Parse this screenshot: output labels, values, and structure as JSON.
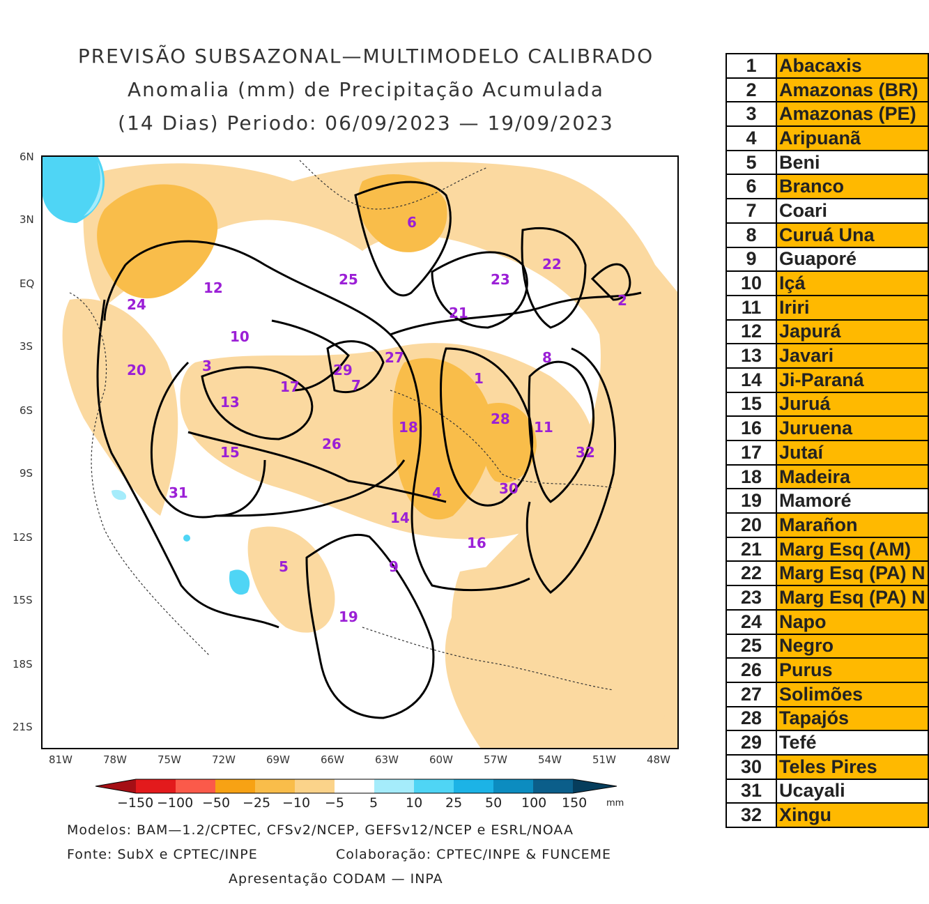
{
  "map": {
    "title_line1": "PREVISÃO SUBSAZONAL—MULTIMODELO CALIBRADO",
    "title_line2": "Anomalia (mm) de Precipitação Acumulada",
    "title_line3": "(14 Dias) Periodo: 06/09/2023 — 19/09/2023",
    "lat_labels": [
      "6N",
      "3N",
      "EQ",
      "3S",
      "6S",
      "9S",
      "12S",
      "15S",
      "18S",
      "21S"
    ],
    "lon_labels": [
      "81W",
      "78W",
      "75W",
      "72W",
      "69W",
      "66W",
      "63W",
      "60W",
      "57W",
      "54W",
      "51W",
      "48W"
    ],
    "basin_markers": [
      "1",
      "2",
      "3",
      "4",
      "5",
      "6",
      "7",
      "8",
      "9",
      "10",
      "11",
      "12",
      "13",
      "14",
      "15",
      "16",
      "17",
      "18",
      "19",
      "20",
      "21",
      "22",
      "23",
      "24",
      "25",
      "26",
      "27",
      "28",
      "29",
      "30",
      "31",
      "32"
    ],
    "legend": {
      "labels": [
        "−150",
        "−100",
        "−50",
        "−25",
        "−10",
        "−5",
        "5",
        "10",
        "25",
        "50",
        "100",
        "150"
      ],
      "unit": "mm",
      "colors": [
        "#a50f15",
        "#e31a1c",
        "#fb5a4a",
        "#f7a214",
        "#f9bd4a",
        "#fbd38a",
        "#fde6bd",
        "#ffffff",
        "#a5ecfb",
        "#4fd5f5",
        "#1cb3e6",
        "#0c8cc0",
        "#0b5e8a",
        "#063d5c"
      ]
    },
    "footer_models": "Modelos: BAM—1.2/CPTEC, CFSv2/NCEP, GEFSv12/NCEP e ESRL/NOAA",
    "footer_source": "Fonte: SubX e CPTEC/INPE",
    "footer_collab": "Colaboração: CPTEC/INPE & FUNCEME",
    "footer_presentation": "Apresentação CODAM — INPA",
    "colors": {
      "orange": "#f9bd4a",
      "light_orange": "#fbd9a0",
      "purple": "#9b1fd6",
      "cyan": "#4fd5f5"
    }
  },
  "basins": [
    {
      "n": "1",
      "name": "Abacaxis",
      "hl": true
    },
    {
      "n": "2",
      "name": "Amazonas (BR)",
      "hl": true
    },
    {
      "n": "3",
      "name": "Amazonas (PE)",
      "hl": true
    },
    {
      "n": "4",
      "name": "Aripuanã",
      "hl": true
    },
    {
      "n": "5",
      "name": "Beni",
      "hl": false
    },
    {
      "n": "6",
      "name": "Branco",
      "hl": true
    },
    {
      "n": "7",
      "name": "Coari",
      "hl": false
    },
    {
      "n": "8",
      "name": "Curuá Una",
      "hl": true
    },
    {
      "n": "9",
      "name": "Guaporé",
      "hl": false
    },
    {
      "n": "10",
      "name": "Içá",
      "hl": true
    },
    {
      "n": "11",
      "name": "Iriri",
      "hl": true
    },
    {
      "n": "12",
      "name": "Japurá",
      "hl": true
    },
    {
      "n": "13",
      "name": "Javari",
      "hl": true
    },
    {
      "n": "14",
      "name": "Ji-Paraná",
      "hl": true
    },
    {
      "n": "15",
      "name": "Juruá",
      "hl": true
    },
    {
      "n": "16",
      "name": "Juruena",
      "hl": true
    },
    {
      "n": "17",
      "name": "Jutaí",
      "hl": true
    },
    {
      "n": "18",
      "name": "Madeira",
      "hl": true
    },
    {
      "n": "19",
      "name": "Mamoré",
      "hl": false
    },
    {
      "n": "20",
      "name": "Marañon",
      "hl": true
    },
    {
      "n": "21",
      "name": "Marg Esq (AM)",
      "hl": true
    },
    {
      "n": "22",
      "name": "Marg Esq (PA) N",
      "hl": true
    },
    {
      "n": "23",
      "name": "Marg Esq (PA) N",
      "hl": true
    },
    {
      "n": "24",
      "name": "Napo",
      "hl": true
    },
    {
      "n": "25",
      "name": "Negro",
      "hl": true
    },
    {
      "n": "26",
      "name": "Purus",
      "hl": true
    },
    {
      "n": "27",
      "name": "Solimões",
      "hl": true
    },
    {
      "n": "28",
      "name": "Tapajós",
      "hl": true
    },
    {
      "n": "29",
      "name": "Tefé",
      "hl": false
    },
    {
      "n": "30",
      "name": "Teles Pires",
      "hl": true
    },
    {
      "n": "31",
      "name": "Ucayali",
      "hl": false
    },
    {
      "n": "32",
      "name": "Xingu",
      "hl": true
    }
  ]
}
